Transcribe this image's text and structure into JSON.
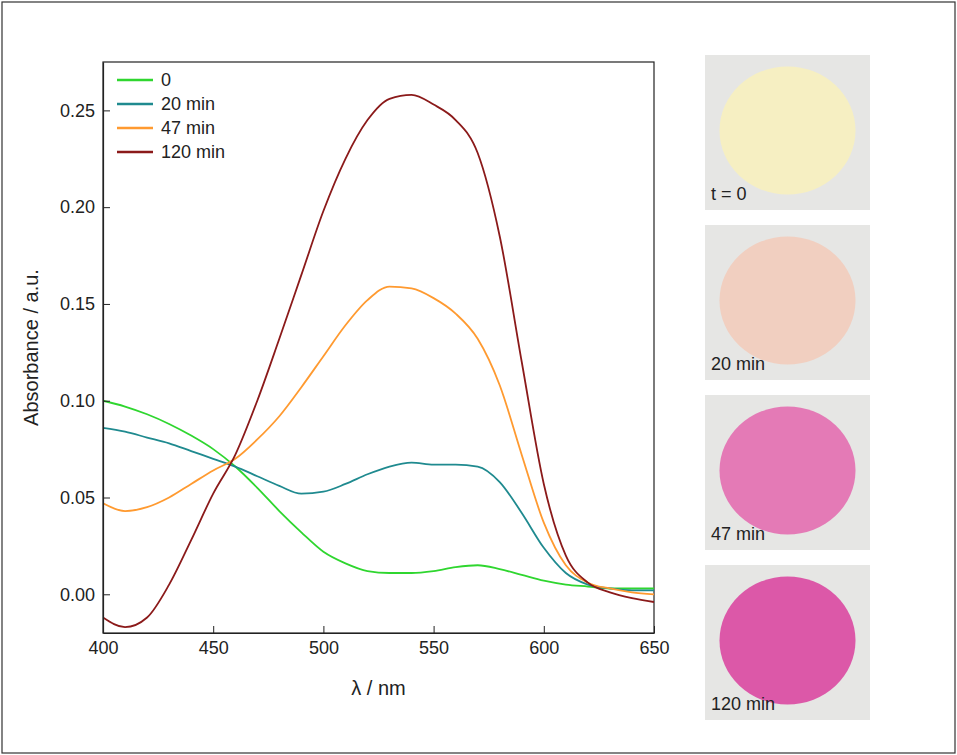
{
  "chart_data": {
    "type": "line",
    "x_label": "λ / nm",
    "y_label": "Absorbance / a.u.",
    "x": [
      400,
      410,
      420,
      430,
      440,
      450,
      460,
      470,
      480,
      490,
      500,
      510,
      520,
      530,
      540,
      550,
      560,
      570,
      580,
      590,
      600,
      610,
      620,
      630,
      640,
      650
    ],
    "series": [
      {
        "name": "0",
        "color": "#2fd62f",
        "values": [
          0.1,
          0.097,
          0.093,
          0.088,
          0.082,
          0.075,
          0.066,
          0.055,
          0.043,
          0.032,
          0.022,
          0.016,
          0.012,
          0.011,
          0.011,
          0.012,
          0.014,
          0.015,
          0.013,
          0.01,
          0.007,
          0.005,
          0.004,
          0.003,
          0.003,
          0.003
        ]
      },
      {
        "name": "20 min",
        "color": "#1f8a8f",
        "values": [
          0.086,
          0.084,
          0.081,
          0.078,
          0.074,
          0.07,
          0.066,
          0.061,
          0.056,
          0.052,
          0.053,
          0.057,
          0.062,
          0.066,
          0.068,
          0.067,
          0.067,
          0.066,
          0.058,
          0.042,
          0.024,
          0.011,
          0.005,
          0.003,
          0.002,
          0.002
        ]
      },
      {
        "name": "47 min",
        "color": "#ff9a30",
        "values": [
          0.047,
          0.043,
          0.045,
          0.05,
          0.057,
          0.064,
          0.07,
          0.08,
          0.092,
          0.107,
          0.123,
          0.139,
          0.152,
          0.159,
          0.158,
          0.153,
          0.145,
          0.132,
          0.108,
          0.072,
          0.037,
          0.015,
          0.006,
          0.003,
          0.001,
          0.0
        ]
      },
      {
        "name": "120 min",
        "color": "#8b1a1a",
        "values": [
          -0.012,
          -0.017,
          -0.012,
          0.005,
          0.028,
          0.052,
          0.072,
          0.1,
          0.132,
          0.165,
          0.198,
          0.225,
          0.245,
          0.256,
          0.258,
          0.253,
          0.245,
          0.228,
          0.185,
          0.12,
          0.057,
          0.02,
          0.006,
          0.001,
          -0.002,
          -0.004
        ]
      }
    ],
    "xlim": [
      400,
      650
    ],
    "xticks": [
      400,
      450,
      500,
      550,
      600,
      650
    ],
    "ylim": [
      -0.02,
      0.275
    ],
    "yticks": [
      {
        "value": 0,
        "label": "0.00"
      },
      {
        "value": 0.05,
        "label": "0.05"
      },
      {
        "value": 0.1,
        "label": "0.10"
      },
      {
        "value": 0.15,
        "label": "0.15"
      },
      {
        "value": 0.2,
        "label": "0.20"
      },
      {
        "value": 0.25,
        "label": "0.25"
      }
    ],
    "legend": "upper left",
    "grid": false
  },
  "photos": [
    {
      "label": "t = 0",
      "color": "#f6efc2"
    },
    {
      "label": "20 min",
      "color": "#f1cfc0"
    },
    {
      "label": "47 min",
      "color": "#e47ab6"
    },
    {
      "label": "120 min",
      "color": "#dc58a8"
    }
  ]
}
